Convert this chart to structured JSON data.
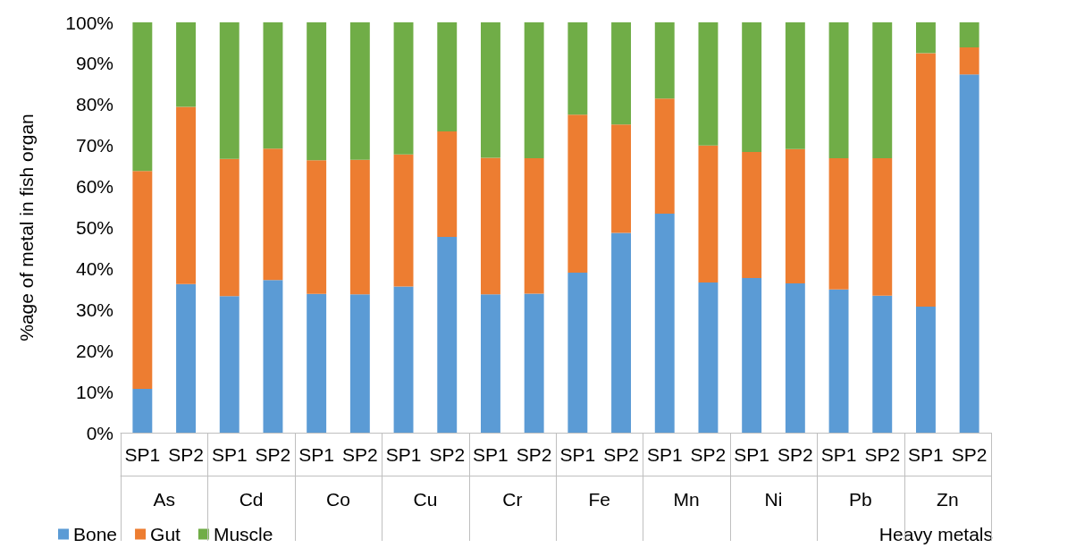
{
  "chart_data": {
    "type": "bar",
    "stacked": true,
    "xlabel": "Heavy metals",
    "ylabel": "%age of metal in fish organ",
    "categories": [
      "SP1",
      "SP2",
      "SP1",
      "SP2",
      "SP1",
      "SP2",
      "SP1",
      "SP2",
      "SP1",
      "SP2",
      "SP1",
      "SP2",
      "SP1",
      "SP2",
      "SP1",
      "SP2",
      "SP1",
      "SP2",
      "SP1",
      "SP2"
    ],
    "annotations": [
      "As",
      "Cd",
      "Co",
      "Cu",
      "Cr",
      "Fe",
      "Mn",
      "Ni",
      "Pb",
      "Zn"
    ],
    "series": [
      {
        "name": "Bone",
        "color": "#5b9bd5",
        "values": [
          10.7,
          36.2,
          33.3,
          37.2,
          33.8,
          33.7,
          35.6,
          47.7,
          33.7,
          33.9,
          39.0,
          48.7,
          53.4,
          36.6,
          37.7,
          36.4,
          34.9,
          33.4,
          30.7,
          87.3
        ]
      },
      {
        "name": "Gut",
        "color": "#ed7d31",
        "values": [
          53.1,
          43.2,
          33.4,
          32.0,
          32.6,
          32.8,
          32.2,
          25.7,
          33.3,
          33.0,
          38.5,
          26.4,
          28.0,
          33.4,
          30.7,
          32.7,
          32.0,
          33.5,
          61.8,
          6.6
        ]
      },
      {
        "name": "Muscle",
        "color": "#70ad47",
        "values": [
          36.2,
          20.6,
          33.3,
          30.8,
          33.6,
          33.5,
          32.2,
          26.6,
          33.0,
          33.1,
          22.5,
          24.9,
          18.6,
          30.0,
          31.6,
          30.9,
          33.1,
          33.1,
          7.5,
          6.1
        ]
      }
    ],
    "ylim": [
      0,
      100
    ],
    "yticks": [
      {
        "value": 0,
        "label": "0%"
      },
      {
        "value": 10,
        "label": "10%"
      },
      {
        "value": 20,
        "label": "20%"
      },
      {
        "value": 30,
        "label": "30%"
      },
      {
        "value": 40,
        "label": "40%"
      },
      {
        "value": 50,
        "label": "50%"
      },
      {
        "value": 60,
        "label": "60%"
      },
      {
        "value": 70,
        "label": "70%"
      },
      {
        "value": 80,
        "label": "80%"
      },
      {
        "value": 90,
        "label": "90%"
      },
      {
        "value": 100,
        "label": "100%"
      }
    ],
    "grid": false,
    "legend": "bottom left"
  }
}
